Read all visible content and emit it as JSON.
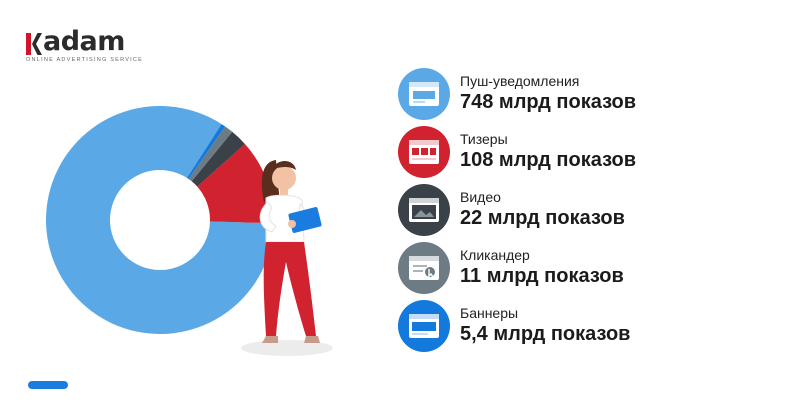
{
  "logo": {
    "word": "adam",
    "tagline": "ONLINE ADVERTISING SERVICE"
  },
  "chart_data": {
    "type": "pie",
    "categories": [
      "Пуш-уведомления",
      "Тизеры",
      "Видео",
      "Кликандер",
      "Баннеры"
    ],
    "values": [
      748,
      108,
      22,
      11,
      5.4
    ],
    "value_labels": [
      "748 млрд показов",
      "108 млрд показов",
      "22 млрд показов",
      "11 млрд показов",
      "5,4 млрд показов"
    ],
    "colors": [
      "#5aa9e6",
      "#d0222f",
      "#3b4148",
      "#6d7c84",
      "#1479dc"
    ],
    "icons": [
      "push-notification-icon",
      "teaser-icon",
      "video-icon",
      "clickunder-icon",
      "banner-icon"
    ],
    "title": "",
    "xlabel": "",
    "ylabel": ""
  }
}
